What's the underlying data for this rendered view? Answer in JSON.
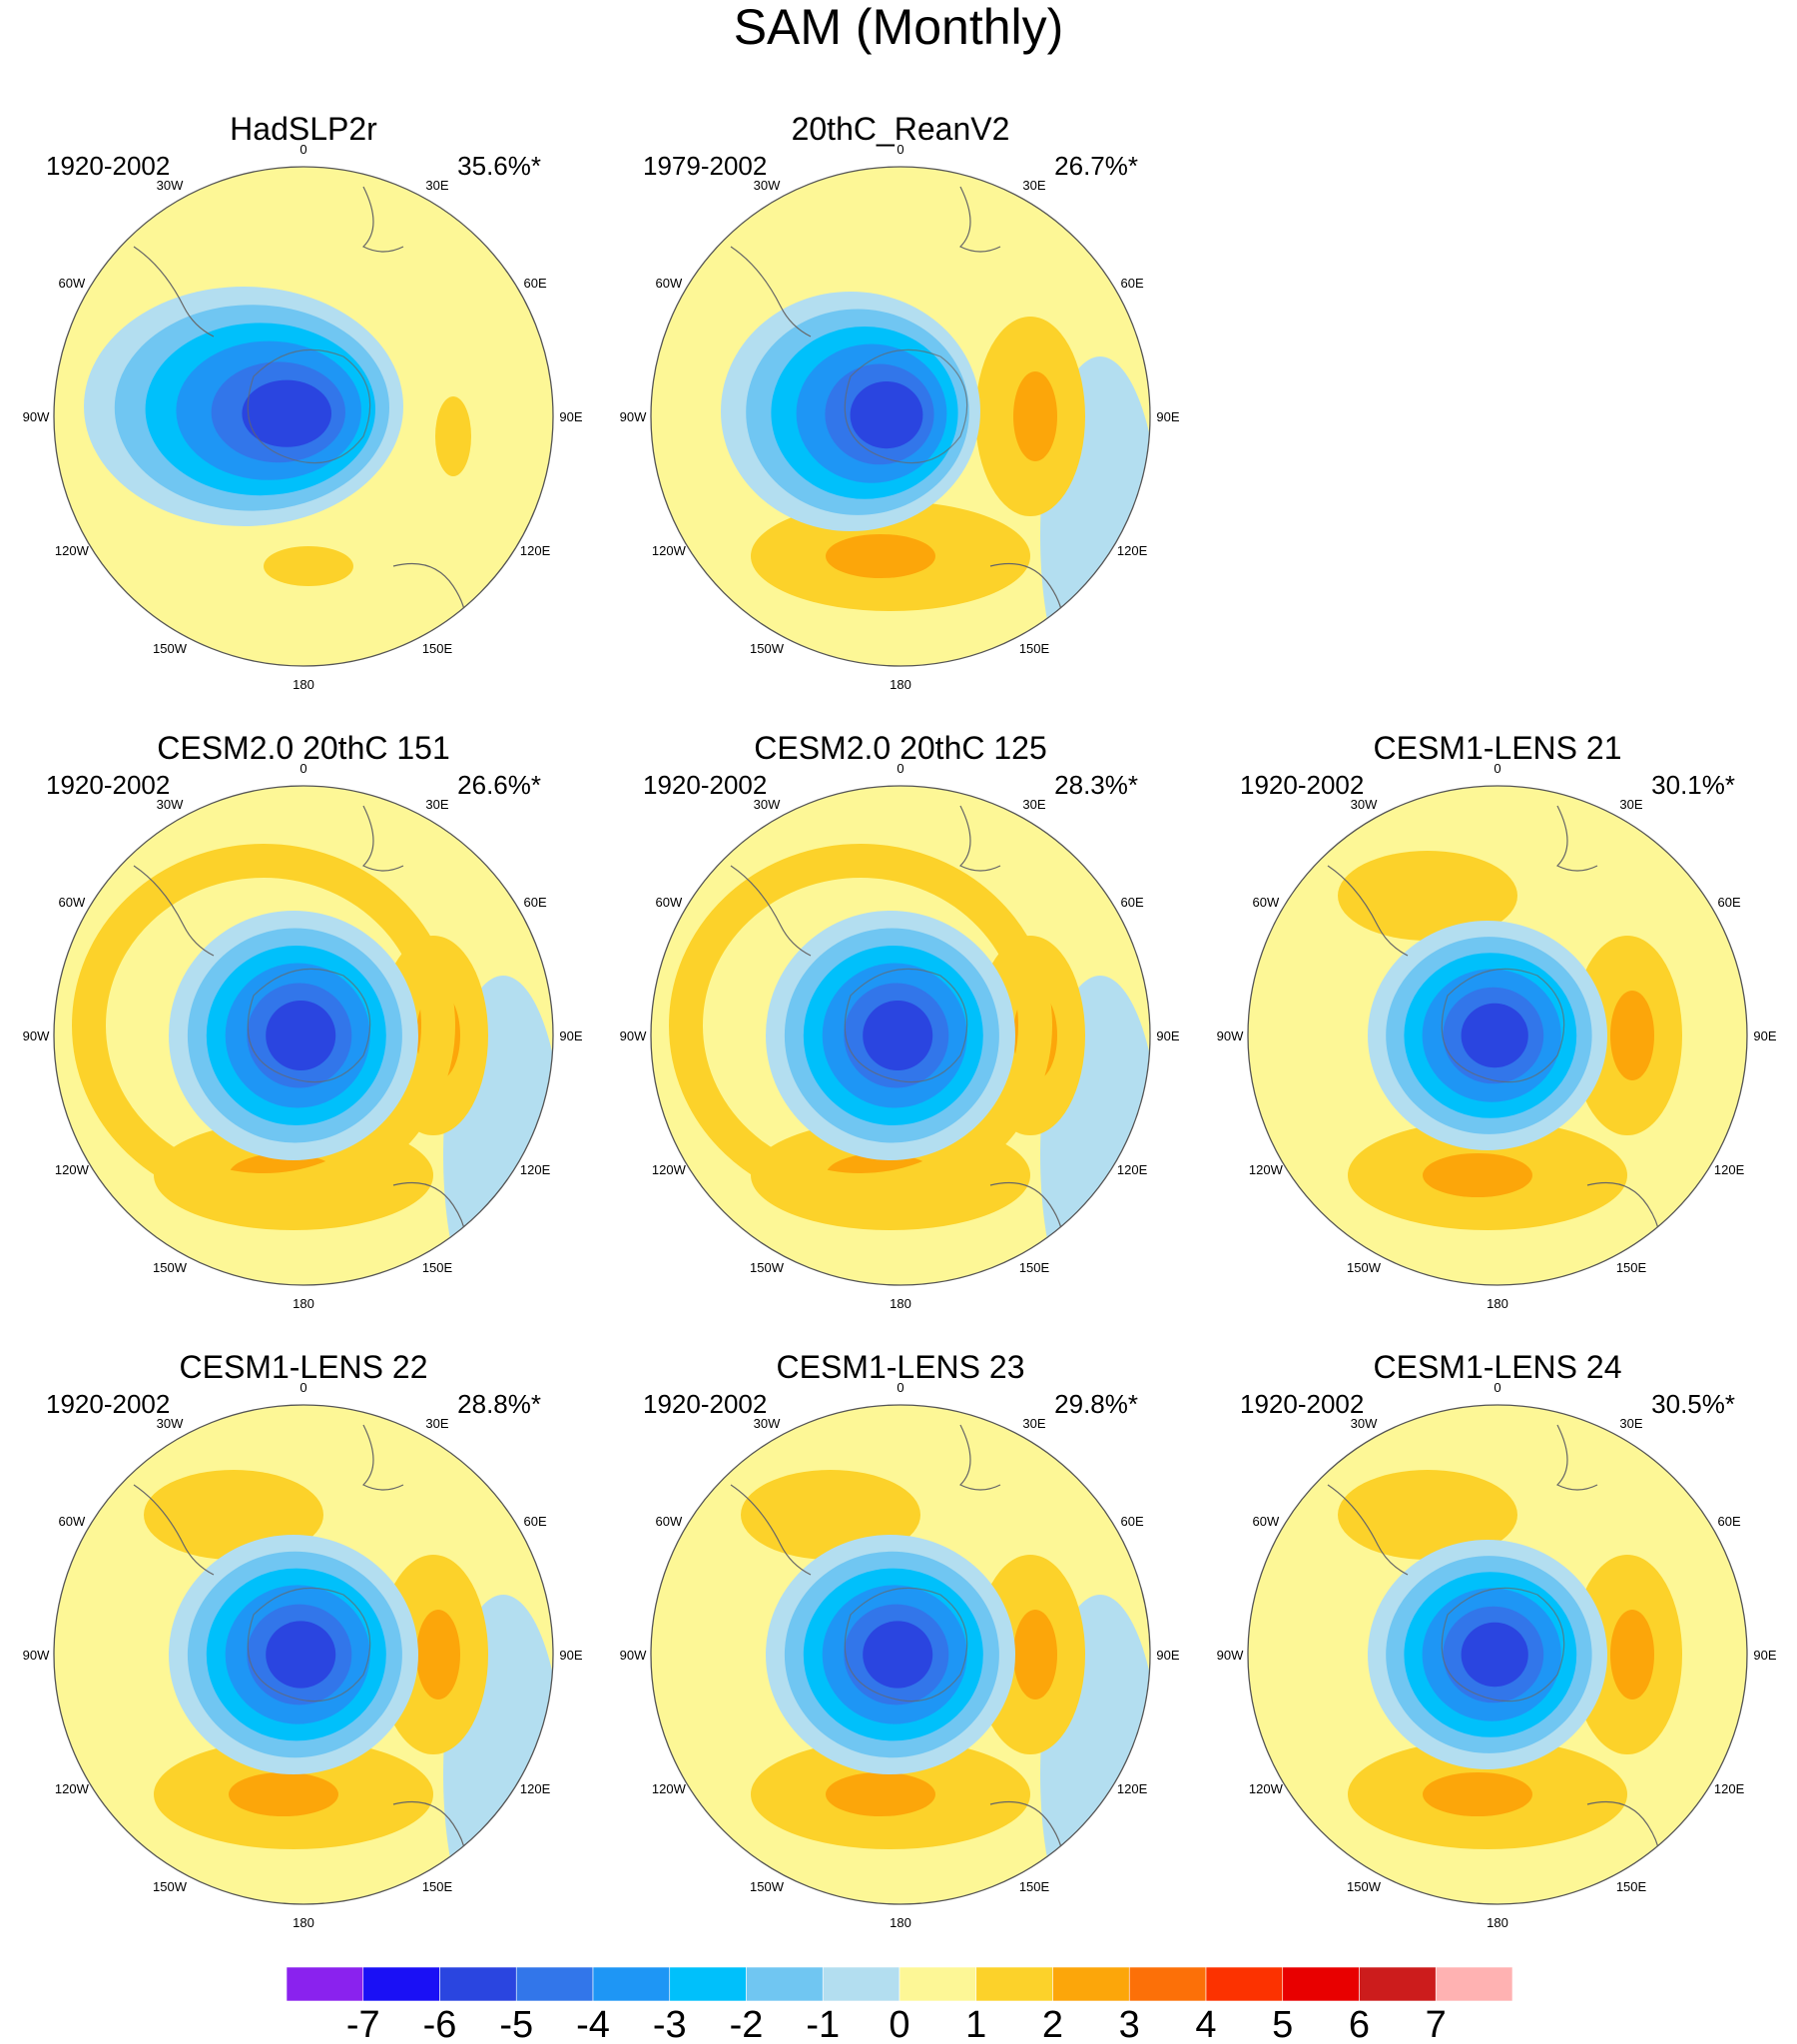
{
  "title": "SAM (Monthly)",
  "lon_labels": [
    "0",
    "30E",
    "60E",
    "90E",
    "120E",
    "150E",
    "180",
    "150W",
    "120W",
    "90W",
    "60W",
    "30W"
  ],
  "panels": [
    {
      "title": "HadSLP2r",
      "years": "1920-2002",
      "pct": "35.6%*"
    },
    {
      "title": "20thC_ReanV2",
      "years": "1979-2002",
      "pct": "26.7%*"
    },
    {
      "title": "CESM2.0 20thC 151",
      "years": "1920-2002",
      "pct": "26.6%*"
    },
    {
      "title": "CESM2.0 20thC 125",
      "years": "1920-2002",
      "pct": "28.3%*"
    },
    {
      "title": "CESM1-LENS 21",
      "years": "1920-2002",
      "pct": "30.1%*"
    },
    {
      "title": "CESM1-LENS 22",
      "years": "1920-2002",
      "pct": "28.8%*"
    },
    {
      "title": "CESM1-LENS 23",
      "years": "1920-2002",
      "pct": "29.8%*"
    },
    {
      "title": "CESM1-LENS 24",
      "years": "1920-2002",
      "pct": "30.5%*"
    }
  ],
  "colorbar": {
    "labels": [
      "-7",
      "-6",
      "-5",
      "-4",
      "-3",
      "-2",
      "-1",
      "0",
      "1",
      "2",
      "3",
      "4",
      "5",
      "6",
      "7"
    ],
    "colors": [
      "#8a22ee",
      "#1a10f5",
      "#2a45e0",
      "#3276ea",
      "#1e96f5",
      "#00c0fb",
      "#70c6f2",
      "#b3def0",
      "#fdf796",
      "#fcd22a",
      "#fca60a",
      "#fc7008",
      "#fc3200",
      "#e80000",
      "#cc1c1c",
      "#ffb2b2"
    ]
  }
}
